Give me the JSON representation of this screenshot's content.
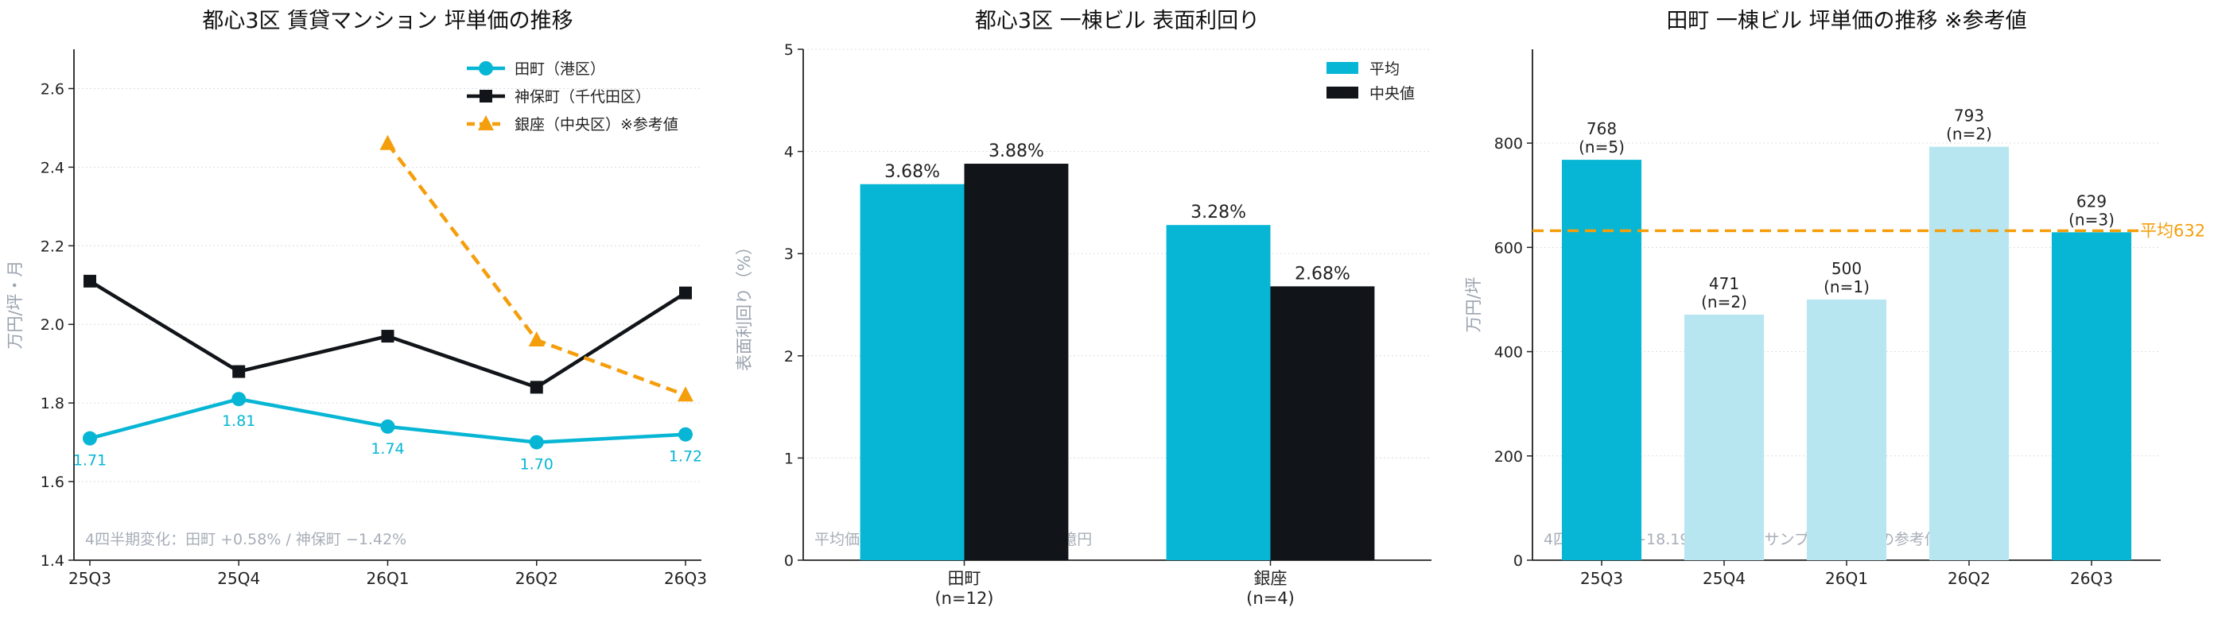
{
  "colors": {
    "cyan": "#06B6D4",
    "cyan_light": "#B7E6F1",
    "black": "#111418",
    "orange": "#F59E0B",
    "grid": "#D9DDE3",
    "axis_label": "#9AA3AE",
    "note": "#A7AEB8"
  },
  "chart_data": [
    {
      "type": "line",
      "title": "都心3区 賃貸マンション 坪単価の推移",
      "xlabel": "",
      "ylabel": "万円/坪・月",
      "categories": [
        "25Q3",
        "25Q4",
        "26Q1",
        "26Q2",
        "26Q3"
      ],
      "ylim": [
        1.4,
        2.7
      ],
      "yticks": [
        "1.4",
        "1.6",
        "1.8",
        "2.0",
        "2.2",
        "2.4",
        "2.6"
      ],
      "grid": "horizontal dotted",
      "legend_position": "top-right",
      "series": [
        {
          "name": "田町（港区）",
          "color": "cyan",
          "marker": "circle",
          "linestyle": "solid",
          "values": [
            1.71,
            1.81,
            1.74,
            1.7,
            1.72
          ],
          "data_labels": [
            "1.71",
            "1.81",
            "1.74",
            "1.70",
            "1.72"
          ]
        },
        {
          "name": "神保町（千代田区）",
          "color": "black",
          "marker": "square",
          "linestyle": "solid",
          "values": [
            2.11,
            1.88,
            1.97,
            1.84,
            2.08
          ]
        },
        {
          "name": "銀座（中央区）※参考値",
          "color": "orange",
          "marker": "triangle",
          "linestyle": "dashed",
          "values": [
            null,
            null,
            2.46,
            1.96,
            1.82
          ]
        }
      ],
      "note": "4四半期変化：田町 +0.58% / 神保町 −1.42%"
    },
    {
      "type": "bar",
      "title": "都心3区 一棟ビル 表面利回り",
      "xlabel": "",
      "ylabel": "表面利回り（%）",
      "categories": [
        "田町\n(n=12)",
        "銀座\n(n=4)"
      ],
      "ylim": [
        0,
        5
      ],
      "yticks": [
        "0",
        "1",
        "2",
        "3",
        "4",
        "5"
      ],
      "grid": "horizontal dotted",
      "legend_position": "top-right",
      "series": [
        {
          "name": "平均",
          "color": "cyan",
          "values": [
            3.68,
            3.28
          ],
          "data_labels": [
            "3.68%",
            "3.28%"
          ]
        },
        {
          "name": "中央値",
          "color": "black",
          "values": [
            3.88,
            2.68
          ],
          "data_labels": [
            "3.88%",
            "2.68%"
          ]
        }
      ],
      "note": "平均価格 田町7.30億円 / 銀座11.33億円"
    },
    {
      "type": "bar",
      "title": "田町 一棟ビル 坪単価の推移 ※参考値",
      "xlabel": "",
      "ylabel": "万円/坪",
      "categories": [
        "25Q3",
        "25Q4",
        "26Q1",
        "26Q2",
        "26Q3"
      ],
      "ylim": [
        0,
        980
      ],
      "yticks": [
        "0",
        "200",
        "400",
        "600",
        "800"
      ],
      "grid": "horizontal dotted",
      "values": [
        768,
        471,
        500,
        793,
        629
      ],
      "value_labels": [
        "768",
        "471",
        "500",
        "793",
        "629"
      ],
      "sample_labels": [
        "(n=5)",
        "(n=2)",
        "(n=1)",
        "(n=2)",
        "(n=3)"
      ],
      "bar_colors": [
        "cyan",
        "cyan_light",
        "cyan_light",
        "cyan_light",
        "cyan"
      ],
      "reference_line": {
        "value": 632,
        "label": "平均632",
        "color": "orange"
      },
      "note": "4四半期変化 −18.19%（薄色＝サンプル数2以下の参考値）"
    }
  ]
}
